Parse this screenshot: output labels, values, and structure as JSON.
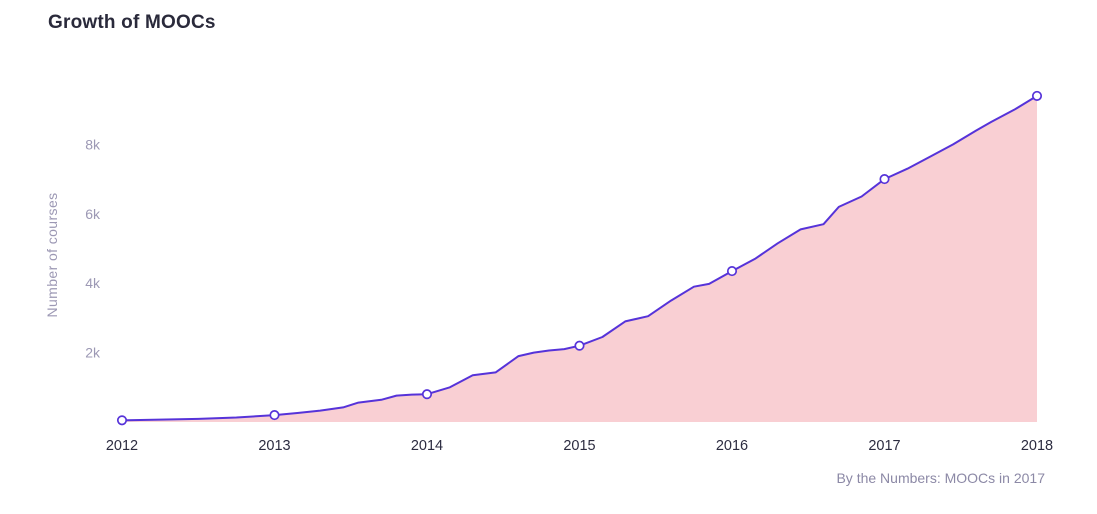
{
  "chart_data": {
    "type": "area",
    "title": "Growth of MOOCs",
    "ylabel": "Number of courses",
    "caption": "By the Numbers: MOOCs in 2017",
    "x_tick_values": [
      2012,
      2013,
      2014,
      2015,
      2016,
      2017,
      2018
    ],
    "x_tick_labels": [
      "2012",
      "2013",
      "2014",
      "2015",
      "2016",
      "2017",
      "2018"
    ],
    "y_ticks": [
      {
        "value": 2000,
        "label": "2k"
      },
      {
        "value": 4000,
        "label": "4k"
      },
      {
        "value": 6000,
        "label": "6k"
      },
      {
        "value": 8000,
        "label": "8k"
      }
    ],
    "xlim": [
      2012,
      2018
    ],
    "ylim": [
      0,
      9800
    ],
    "colors": {
      "line": "#5633d9",
      "fill": "#f9cfd3",
      "marker_fill": "#ffffff",
      "title": "#2a2a3b",
      "x_tick": "#2c2c40",
      "y_tick": "#9c98b4",
      "caption": "#8c89a6"
    },
    "series": [
      {
        "name": "Number of courses",
        "x": [
          2012.0,
          2012.25,
          2012.5,
          2012.75,
          2013.0,
          2013.15,
          2013.3,
          2013.45,
          2013.55,
          2013.7,
          2013.8,
          2013.9,
          2014.0,
          2014.15,
          2014.3,
          2014.45,
          2014.6,
          2014.7,
          2014.8,
          2014.9,
          2015.0,
          2015.15,
          2015.3,
          2015.45,
          2015.6,
          2015.75,
          2015.85,
          2016.0,
          2016.15,
          2016.3,
          2016.45,
          2016.6,
          2016.7,
          2016.85,
          2017.0,
          2017.15,
          2017.3,
          2017.45,
          2017.6,
          2017.7,
          2017.85,
          2018.0
        ],
        "y": [
          50,
          70,
          90,
          130,
          200,
          260,
          330,
          420,
          560,
          640,
          760,
          790,
          800,
          1000,
          1350,
          1430,
          1900,
          2000,
          2060,
          2100,
          2200,
          2450,
          2900,
          3050,
          3500,
          3900,
          3980,
          4350,
          4700,
          5150,
          5550,
          5700,
          6200,
          6500,
          7000,
          7300,
          7650,
          8000,
          8400,
          8650,
          9000,
          9400
        ]
      }
    ],
    "markers": {
      "x": [
        2012,
        2013,
        2014,
        2015,
        2016,
        2017,
        2018
      ],
      "y": [
        50,
        200,
        800,
        2200,
        4350,
        7000,
        9400
      ]
    }
  }
}
